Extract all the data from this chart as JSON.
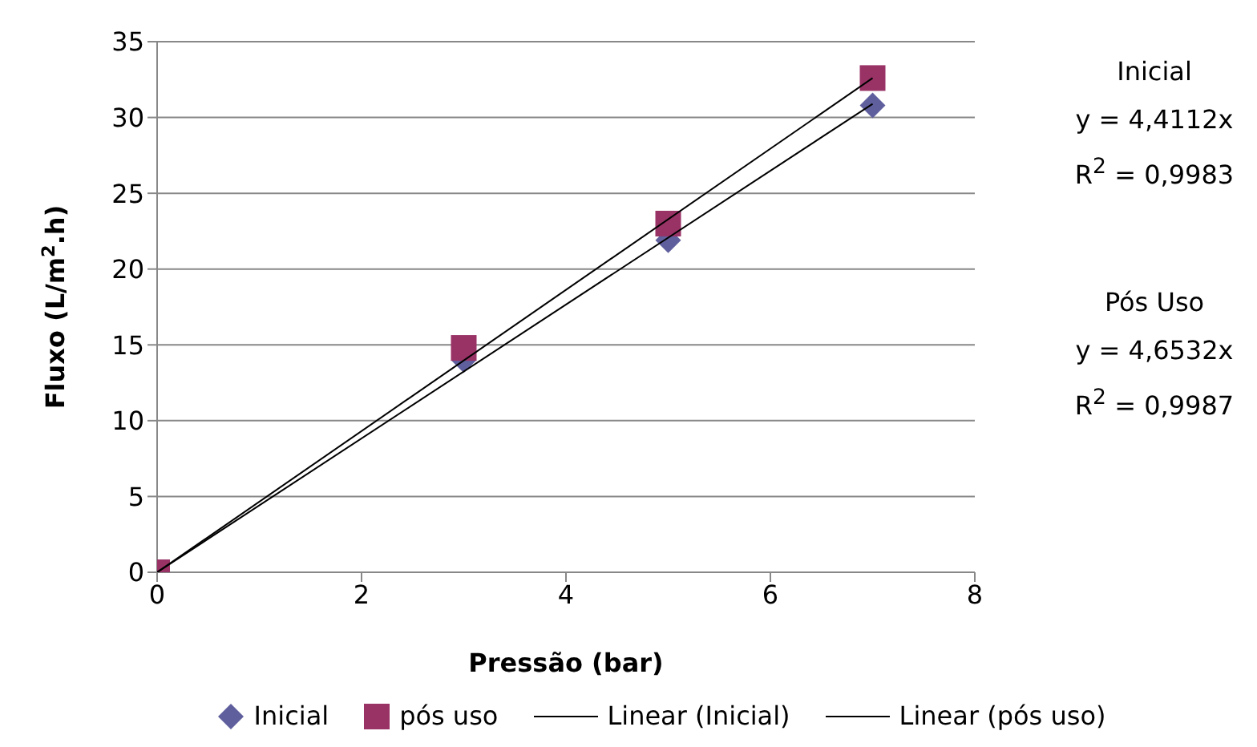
{
  "chart_data": {
    "type": "scatter",
    "xlabel": "Pressão (bar)",
    "ylabel": "Fluxo (L/m$^{2}$.h)",
    "xlim": [
      0,
      8
    ],
    "xticks": [
      0,
      2,
      4,
      6,
      8
    ],
    "ylim": [
      0,
      35
    ],
    "yticks": [
      0,
      5,
      10,
      15,
      20,
      25,
      30,
      35
    ],
    "grid": "y",
    "legend": "bottom",
    "series": [
      {
        "name": "Inicial",
        "marker": "diamond",
        "color": "#5f5f9e",
        "x": [
          3,
          5,
          7
        ],
        "values": [
          14.0,
          21.9,
          30.8
        ]
      },
      {
        "name": "pós uso",
        "marker": "square",
        "color": "#993366",
        "x": [
          0,
          3,
          5,
          7
        ],
        "values": [
          0,
          14.8,
          23.0,
          32.6
        ]
      },
      {
        "name": "Linear (Inicial)",
        "type": "line",
        "marker": "none",
        "color": "#000000",
        "x": [
          0,
          7
        ],
        "values": [
          0,
          30.9
        ]
      },
      {
        "name": "Linear (pós uso)",
        "type": "line",
        "marker": "none",
        "color": "#000000",
        "x": [
          0,
          7
        ],
        "values": [
          0,
          32.6
        ]
      }
    ],
    "annotations": [
      "Inicial",
      "y = 4,4112x",
      "R$^{2}$ = 0,9983",
      "Pós Uso",
      "y = 4,6532x",
      "R$^{2}$ = 0,9987"
    ]
  }
}
